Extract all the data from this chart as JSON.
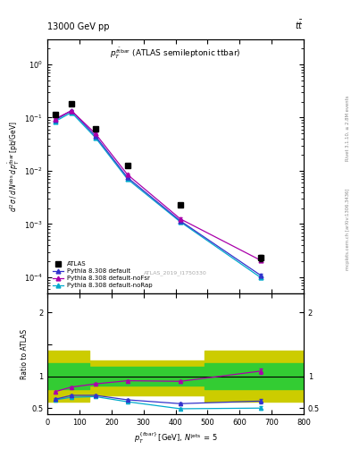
{
  "title_top": "13000 GeV pp",
  "title_top_right": "t$\\bar{t}$",
  "plot_title": "$p_T^{t\\bar{t}bar}$ (ATLAS semileptonic ttbar)",
  "ylabel_main": "$d^2\\sigma\\,/\\,d\\,N^{\\mathrm{obs}}\\,d\\,p^{\\bar{t}bar}_T$ [pb/GeV]",
  "ylabel_ratio": "Ratio to ATLAS",
  "xlabel": "$p^{\\{tbar\\}}_T$ [GeV], $N^{\\mathrm{jets}}$ = 5",
  "right_label": "Rivet 3.1.10, ≥ 2.8M events",
  "right_label2": "mcplots.cern.ch [arXiv:1306.3436]",
  "watermark": "ATLAS_2019_I1750330",
  "x_data": [
    25,
    75,
    150,
    250,
    415,
    665
  ],
  "atlas_y": [
    0.115,
    0.185,
    0.062,
    0.0125,
    0.0023,
    0.00023
  ],
  "atlas_yerr": [
    0.008,
    0.01,
    0.004,
    0.001,
    0.0002,
    3e-05
  ],
  "py_default_y": [
    0.09,
    0.135,
    0.045,
    0.0075,
    0.00115,
    0.00011
  ],
  "py_default_yerr": [
    0.003,
    0.005,
    0.002,
    0.0003,
    8e-05,
    8e-06
  ],
  "py_noFsr_y": [
    0.095,
    0.135,
    0.05,
    0.0085,
    0.00125,
    0.00021
  ],
  "py_noFsr_yerr": [
    0.003,
    0.005,
    0.002,
    0.0003,
    8e-05,
    1e-05
  ],
  "py_noRap_y": [
    0.085,
    0.125,
    0.042,
    0.007,
    0.0011,
    0.0001
  ],
  "py_noRap_yerr": [
    0.003,
    0.005,
    0.002,
    0.0003,
    8e-05,
    8e-06
  ],
  "ratio_default_y": [
    0.64,
    0.7,
    0.7,
    0.63,
    0.57,
    0.61
  ],
  "ratio_default_yerr": [
    0.015,
    0.015,
    0.015,
    0.015,
    0.02,
    0.03
  ],
  "ratio_noFsr_y": [
    0.76,
    0.83,
    0.88,
    0.93,
    0.92,
    1.08
  ],
  "ratio_noFsr_yerr": [
    0.015,
    0.015,
    0.015,
    0.015,
    0.02,
    0.04
  ],
  "ratio_noRap_y": [
    0.63,
    0.67,
    0.68,
    0.6,
    0.49,
    0.5
  ],
  "ratio_noRap_yerr": [
    0.015,
    0.015,
    0.015,
    0.015,
    0.02,
    0.03
  ],
  "color_atlas": "#000000",
  "color_default": "#3333cc",
  "color_noFsr": "#aa00aa",
  "color_noRap": "#00aacc",
  "color_green": "#33cc33",
  "color_yellow": "#cccc00",
  "xlim": [
    0,
    800
  ],
  "ylim_main": [
    5e-05,
    3.0
  ],
  "ylim_ratio": [
    0.4,
    2.3
  ]
}
